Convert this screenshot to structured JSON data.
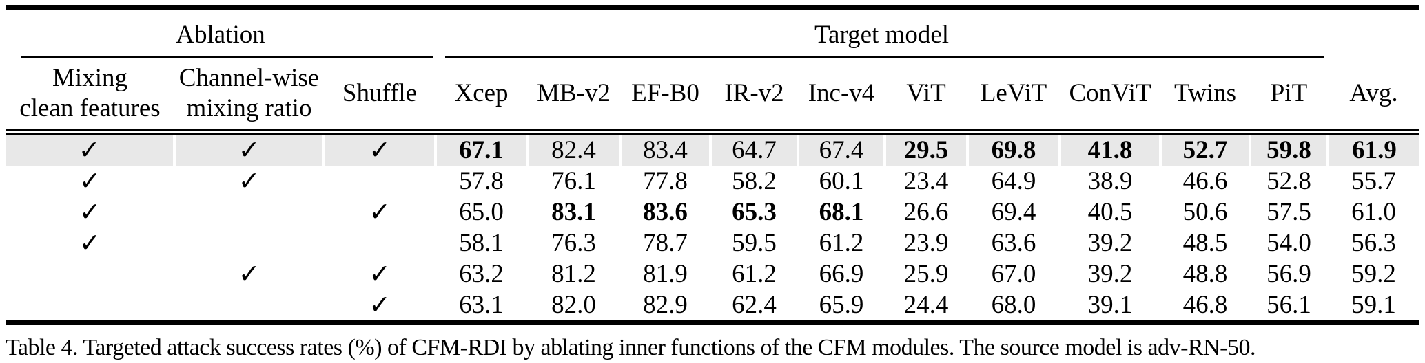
{
  "page": {
    "caption": "Table 4. Targeted attack success rates (%) of CFM-RDI by ablating inner functions of the CFM modules. The source model is adv-RN-50."
  },
  "colors": {
    "highlight_row_bg": "#e8e8e8",
    "rule": "#000000",
    "text": "#000000",
    "background": "#ffffff"
  },
  "table": {
    "group_headers": {
      "ablation": "Ablation",
      "target": "Target model"
    },
    "ablation_columns": [
      {
        "line1": "Mixing",
        "line2": "clean features"
      },
      {
        "line1": "Channel-wise",
        "line2": "mixing ratio"
      },
      {
        "line1": "Shuffle",
        "line2": ""
      }
    ],
    "model_columns": [
      "Xcep",
      "MB-v2",
      "EF-B0",
      "IR-v2",
      "Inc-v4",
      "ViT",
      "LeViT",
      "ConViT",
      "Twins",
      "PiT",
      "Avg."
    ],
    "check_glyph": "✓",
    "rows": [
      {
        "highlight": true,
        "checks": [
          true,
          true,
          true
        ],
        "values": [
          {
            "v": "67.1",
            "b": true
          },
          {
            "v": "82.4",
            "b": false
          },
          {
            "v": "83.4",
            "b": false
          },
          {
            "v": "64.7",
            "b": false
          },
          {
            "v": "67.4",
            "b": false
          },
          {
            "v": "29.5",
            "b": true
          },
          {
            "v": "69.8",
            "b": true
          },
          {
            "v": "41.8",
            "b": true
          },
          {
            "v": "52.7",
            "b": true
          },
          {
            "v": "59.8",
            "b": true
          },
          {
            "v": "61.9",
            "b": true
          }
        ]
      },
      {
        "highlight": false,
        "checks": [
          true,
          true,
          false
        ],
        "values": [
          {
            "v": "57.8",
            "b": false
          },
          {
            "v": "76.1",
            "b": false
          },
          {
            "v": "77.8",
            "b": false
          },
          {
            "v": "58.2",
            "b": false
          },
          {
            "v": "60.1",
            "b": false
          },
          {
            "v": "23.4",
            "b": false
          },
          {
            "v": "64.9",
            "b": false
          },
          {
            "v": "38.9",
            "b": false
          },
          {
            "v": "46.6",
            "b": false
          },
          {
            "v": "52.8",
            "b": false
          },
          {
            "v": "55.7",
            "b": false
          }
        ]
      },
      {
        "highlight": false,
        "checks": [
          true,
          false,
          true
        ],
        "values": [
          {
            "v": "65.0",
            "b": false
          },
          {
            "v": "83.1",
            "b": true
          },
          {
            "v": "83.6",
            "b": true
          },
          {
            "v": "65.3",
            "b": true
          },
          {
            "v": "68.1",
            "b": true
          },
          {
            "v": "26.6",
            "b": false
          },
          {
            "v": "69.4",
            "b": false
          },
          {
            "v": "40.5",
            "b": false
          },
          {
            "v": "50.6",
            "b": false
          },
          {
            "v": "57.5",
            "b": false
          },
          {
            "v": "61.0",
            "b": false
          }
        ]
      },
      {
        "highlight": false,
        "checks": [
          true,
          false,
          false
        ],
        "values": [
          {
            "v": "58.1",
            "b": false
          },
          {
            "v": "76.3",
            "b": false
          },
          {
            "v": "78.7",
            "b": false
          },
          {
            "v": "59.5",
            "b": false
          },
          {
            "v": "61.2",
            "b": false
          },
          {
            "v": "23.9",
            "b": false
          },
          {
            "v": "63.6",
            "b": false
          },
          {
            "v": "39.2",
            "b": false
          },
          {
            "v": "48.5",
            "b": false
          },
          {
            "v": "54.0",
            "b": false
          },
          {
            "v": "56.3",
            "b": false
          }
        ]
      },
      {
        "highlight": false,
        "checks": [
          false,
          true,
          true
        ],
        "values": [
          {
            "v": "63.2",
            "b": false
          },
          {
            "v": "81.2",
            "b": false
          },
          {
            "v": "81.9",
            "b": false
          },
          {
            "v": "61.2",
            "b": false
          },
          {
            "v": "66.9",
            "b": false
          },
          {
            "v": "25.9",
            "b": false
          },
          {
            "v": "67.0",
            "b": false
          },
          {
            "v": "39.2",
            "b": false
          },
          {
            "v": "48.8",
            "b": false
          },
          {
            "v": "56.9",
            "b": false
          },
          {
            "v": "59.2",
            "b": false
          }
        ]
      },
      {
        "highlight": false,
        "checks": [
          false,
          false,
          true
        ],
        "values": [
          {
            "v": "63.1",
            "b": false
          },
          {
            "v": "82.0",
            "b": false
          },
          {
            "v": "82.9",
            "b": false
          },
          {
            "v": "62.4",
            "b": false
          },
          {
            "v": "65.9",
            "b": false
          },
          {
            "v": "24.4",
            "b": false
          },
          {
            "v": "68.0",
            "b": false
          },
          {
            "v": "39.1",
            "b": false
          },
          {
            "v": "46.8",
            "b": false
          },
          {
            "v": "56.1",
            "b": false
          },
          {
            "v": "59.1",
            "b": false
          }
        ]
      }
    ]
  }
}
